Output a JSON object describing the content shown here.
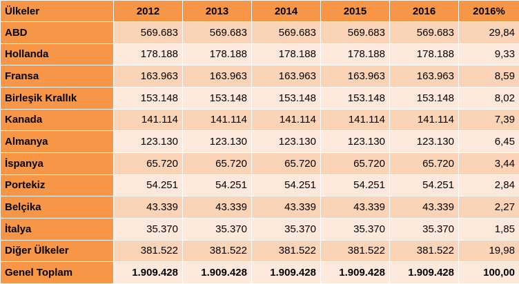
{
  "colors": {
    "header_bg": "#f79646",
    "row_odd_bg": "#fbd3b7",
    "row_even_bg": "#fde9db"
  },
  "table": {
    "headers": [
      "Ülkeler",
      "2012",
      "2013",
      "2014",
      "2015",
      "2016",
      "2016%"
    ],
    "rows": [
      {
        "country": "ABD",
        "values": [
          "569.683",
          "569.683",
          "569.683",
          "569.683",
          "569.683",
          "29,84"
        ]
      },
      {
        "country": "Hollanda",
        "values": [
          "178.188",
          "178.188",
          "178.188",
          "178.188",
          "178.188",
          "9,33"
        ]
      },
      {
        "country": "Fransa",
        "values": [
          "163.963",
          "163.963",
          "163.963",
          "163.963",
          "163.963",
          "8,59"
        ]
      },
      {
        "country": "Birleşik Krallık",
        "values": [
          "153.148",
          "153.148",
          "153.148",
          "153.148",
          "153.148",
          "8,02"
        ]
      },
      {
        "country": "Kanada",
        "values": [
          "141.114",
          "141.114",
          "141.114",
          "141.114",
          "141.114",
          "7,39"
        ]
      },
      {
        "country": "Almanya",
        "values": [
          "123.130",
          "123.130",
          "123.130",
          "123.130",
          "123.130",
          "6,45"
        ]
      },
      {
        "country": "İspanya",
        "values": [
          "65.720",
          "65.720",
          "65.720",
          "65.720",
          "65.720",
          "3,44"
        ]
      },
      {
        "country": "Portekiz",
        "values": [
          "54.251",
          "54.251",
          "54.251",
          "54.251",
          "54.251",
          "2,84"
        ]
      },
      {
        "country": "Belçika",
        "values": [
          "43.339",
          "43.339",
          "43.339",
          "43.339",
          "43.339",
          "2,27"
        ]
      },
      {
        "country": "İtalya",
        "values": [
          "35.370",
          "35.370",
          "35.370",
          "35.370",
          "35.370",
          "1,85"
        ]
      },
      {
        "country": "Diğer Ülkeler",
        "values": [
          "381.522",
          "381.522",
          "381.522",
          "381.522",
          "381.522",
          "19,98"
        ]
      },
      {
        "country": "Genel Toplam",
        "values": [
          "1.909.428",
          "1.909.428",
          "1.909.428",
          "1.909.428",
          "1.909.428",
          "100,00"
        ]
      }
    ]
  }
}
